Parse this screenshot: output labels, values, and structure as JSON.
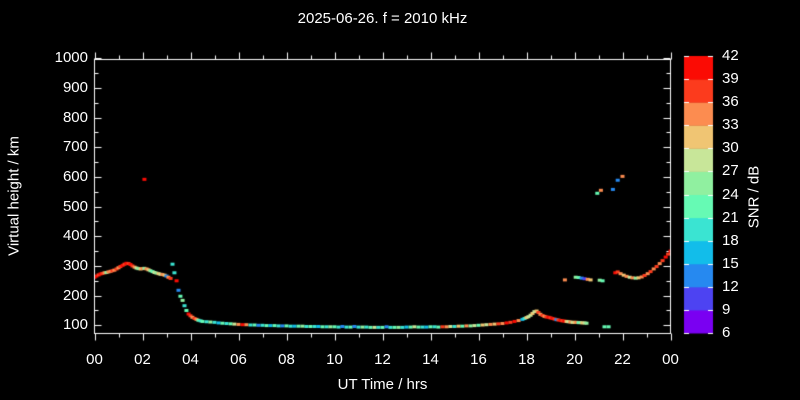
{
  "title": "2025-06-26. f = 2010 kHz",
  "chart_data": {
    "type": "scatter",
    "xlabel": "UT Time / hrs",
    "ylabel": "Virtual height / km",
    "background": "#000000",
    "frame_color": "#ffffff",
    "xlim_hours": [
      0,
      24
    ],
    "x_tick_labels": [
      "00",
      "02",
      "04",
      "06",
      "08",
      "10",
      "12",
      "14",
      "16",
      "18",
      "20",
      "22",
      "00"
    ],
    "x_minor_step_hours": 1,
    "y_tick_labels": [
      "100",
      "200",
      "300",
      "400",
      "500",
      "600",
      "700",
      "800",
      "900",
      "1000"
    ],
    "y_minor_step_km": 50,
    "ylim_km_labeled": [
      100,
      1000
    ],
    "grid": "off",
    "colorbar": {
      "label": "SNR / dB",
      "min": 6,
      "max": 42,
      "step": 3,
      "tick_values": [
        6,
        9,
        12,
        15,
        18,
        21,
        24,
        27,
        30,
        33,
        36,
        39,
        42
      ],
      "colors_bottom_to_top": [
        "#7a00f2",
        "#4d43f2",
        "#2689f0",
        "#12bdea",
        "#3ae4d2",
        "#66fab4",
        "#90f0a0",
        "#c8e699",
        "#f0c573",
        "#fc8c50",
        "#fc3b1d",
        "#fb0b04"
      ]
    },
    "points_format": [
      "ut_hours",
      "virtual_height_km",
      "snr_db"
    ],
    "points": [
      [
        0.0,
        262,
        40
      ],
      [
        0.08,
        266,
        40
      ],
      [
        0.17,
        270,
        37
      ],
      [
        0.25,
        273,
        40
      ],
      [
        0.33,
        275,
        37
      ],
      [
        0.42,
        277,
        34
      ],
      [
        0.5,
        278,
        25
      ],
      [
        0.58,
        280,
        34
      ],
      [
        0.67,
        282,
        34
      ],
      [
        0.75,
        284,
        37
      ],
      [
        0.83,
        286,
        34
      ],
      [
        0.92,
        290,
        37
      ],
      [
        1.0,
        294,
        34
      ],
      [
        1.08,
        298,
        37
      ],
      [
        1.17,
        302,
        40
      ],
      [
        1.25,
        306,
        37
      ],
      [
        1.33,
        309,
        40
      ],
      [
        1.42,
        308,
        37
      ],
      [
        1.5,
        305,
        40
      ],
      [
        1.58,
        300,
        37
      ],
      [
        1.67,
        296,
        34
      ],
      [
        1.75,
        293,
        28
      ],
      [
        1.83,
        291,
        25
      ],
      [
        1.92,
        290,
        31
      ],
      [
        2.0,
        291,
        34
      ],
      [
        2.08,
        292,
        25
      ],
      [
        2.17,
        290,
        34
      ],
      [
        2.25,
        287,
        31
      ],
      [
        2.33,
        284,
        25
      ],
      [
        2.42,
        281,
        22
      ],
      [
        2.5,
        278,
        28
      ],
      [
        2.58,
        276,
        25
      ],
      [
        2.67,
        274,
        31
      ],
      [
        2.75,
        272,
        28
      ],
      [
        2.83,
        271,
        34
      ],
      [
        2.92,
        269,
        31
      ],
      [
        3.0,
        266,
        13
      ],
      [
        3.08,
        262,
        34
      ],
      [
        3.17,
        258,
        37
      ],
      [
        3.25,
        306,
        19
      ],
      [
        3.33,
        277,
        19
      ],
      [
        3.42,
        250,
        40
      ],
      [
        3.5,
        218,
        13
      ],
      [
        3.58,
        198,
        22
      ],
      [
        3.67,
        184,
        25
      ],
      [
        3.75,
        166,
        19
      ],
      [
        3.83,
        150,
        22
      ],
      [
        3.92,
        138,
        40
      ],
      [
        4.0,
        132,
        37
      ],
      [
        4.08,
        127,
        34
      ],
      [
        4.17,
        123,
        37
      ],
      [
        4.25,
        120,
        34
      ],
      [
        4.33,
        117,
        22
      ],
      [
        4.42,
        115,
        19
      ],
      [
        4.5,
        113,
        22
      ],
      [
        4.67,
        112,
        19
      ],
      [
        4.83,
        111,
        25
      ],
      [
        5.0,
        110,
        19
      ],
      [
        5.17,
        108,
        16
      ],
      [
        5.33,
        107,
        22
      ],
      [
        5.5,
        106,
        19
      ],
      [
        5.67,
        105,
        22
      ],
      [
        5.83,
        104,
        28
      ],
      [
        6.0,
        103,
        34
      ],
      [
        6.17,
        102,
        40
      ],
      [
        6.33,
        102,
        34
      ],
      [
        6.5,
        101,
        19
      ],
      [
        6.67,
        101,
        22
      ],
      [
        6.83,
        100,
        13
      ],
      [
        7.0,
        100,
        19
      ],
      [
        7.17,
        99,
        22
      ],
      [
        7.33,
        99,
        16
      ],
      [
        7.5,
        99,
        22
      ],
      [
        7.67,
        98,
        19
      ],
      [
        7.83,
        98,
        13
      ],
      [
        8.0,
        98,
        22
      ],
      [
        8.17,
        97,
        19
      ],
      [
        8.33,
        97,
        16
      ],
      [
        8.5,
        97,
        22
      ],
      [
        8.67,
        97,
        25
      ],
      [
        8.83,
        96,
        19
      ],
      [
        9.0,
        96,
        22
      ],
      [
        9.17,
        96,
        19
      ],
      [
        9.33,
        96,
        16
      ],
      [
        9.5,
        95,
        22
      ],
      [
        9.67,
        95,
        19
      ],
      [
        9.83,
        95,
        25
      ],
      [
        10.0,
        95,
        22
      ],
      [
        10.17,
        94,
        19
      ],
      [
        10.33,
        96,
        13
      ],
      [
        10.5,
        94,
        19
      ],
      [
        10.67,
        94,
        22
      ],
      [
        10.83,
        96,
        13
      ],
      [
        11.0,
        94,
        19
      ],
      [
        11.17,
        94,
        25
      ],
      [
        11.33,
        94,
        19
      ],
      [
        11.5,
        93,
        22
      ],
      [
        11.67,
        93,
        28
      ],
      [
        11.83,
        93,
        19
      ],
      [
        12.0,
        93,
        22
      ],
      [
        12.17,
        95,
        13
      ],
      [
        12.33,
        93,
        19
      ],
      [
        12.5,
        93,
        22
      ],
      [
        12.67,
        93,
        25
      ],
      [
        12.83,
        93,
        19
      ],
      [
        13.0,
        94,
        16
      ],
      [
        13.17,
        94,
        22
      ],
      [
        13.33,
        95,
        28
      ],
      [
        13.5,
        94,
        22
      ],
      [
        13.67,
        94,
        19
      ],
      [
        13.83,
        94,
        16
      ],
      [
        14.0,
        95,
        22
      ],
      [
        14.17,
        95,
        19
      ],
      [
        14.33,
        94,
        22
      ],
      [
        14.5,
        95,
        37
      ],
      [
        14.67,
        95,
        34
      ],
      [
        14.83,
        96,
        28
      ],
      [
        15.0,
        96,
        19
      ],
      [
        15.17,
        97,
        31
      ],
      [
        15.33,
        97,
        22
      ],
      [
        15.5,
        98,
        34
      ],
      [
        15.67,
        98,
        25
      ],
      [
        15.83,
        99,
        28
      ],
      [
        16.0,
        100,
        22
      ],
      [
        16.17,
        101,
        31
      ],
      [
        16.33,
        102,
        28
      ],
      [
        16.5,
        103,
        34
      ],
      [
        16.67,
        104,
        31
      ],
      [
        16.83,
        105,
        37
      ],
      [
        17.0,
        106,
        34
      ],
      [
        17.17,
        108,
        40
      ],
      [
        17.33,
        110,
        37
      ],
      [
        17.5,
        113,
        40
      ],
      [
        17.67,
        116,
        34
      ],
      [
        17.83,
        120,
        16
      ],
      [
        17.92,
        123,
        19
      ],
      [
        18.0,
        126,
        31
      ],
      [
        18.08,
        129,
        28
      ],
      [
        18.17,
        134,
        28
      ],
      [
        18.25,
        140,
        31
      ],
      [
        18.33,
        146,
        28
      ],
      [
        18.42,
        148,
        31
      ],
      [
        18.5,
        143,
        37
      ],
      [
        18.58,
        137,
        34
      ],
      [
        18.67,
        133,
        37
      ],
      [
        18.75,
        130,
        34
      ],
      [
        18.83,
        128,
        37
      ],
      [
        18.92,
        127,
        40
      ],
      [
        19.0,
        125,
        37
      ],
      [
        19.08,
        123,
        40
      ],
      [
        19.17,
        121,
        37
      ],
      [
        19.25,
        119,
        13
      ],
      [
        19.33,
        118,
        37
      ],
      [
        19.42,
        116,
        40
      ],
      [
        19.5,
        115,
        37
      ],
      [
        19.58,
        114,
        40
      ],
      [
        19.67,
        113,
        31
      ],
      [
        19.75,
        112,
        28
      ],
      [
        19.83,
        111,
        34
      ],
      [
        19.92,
        110,
        28
      ],
      [
        20.0,
        110,
        31
      ],
      [
        20.08,
        110,
        34
      ],
      [
        20.17,
        109,
        22
      ],
      [
        20.25,
        109,
        25
      ],
      [
        20.33,
        108,
        31
      ],
      [
        20.42,
        108,
        28
      ],
      [
        20.5,
        107,
        25
      ],
      [
        21.25,
        95,
        22
      ],
      [
        21.42,
        95,
        22
      ],
      [
        19.6,
        253,
        34
      ],
      [
        20.05,
        262,
        25
      ],
      [
        20.17,
        261,
        22
      ],
      [
        20.3,
        259,
        13
      ],
      [
        20.42,
        257,
        10
      ],
      [
        20.55,
        255,
        34
      ],
      [
        20.67,
        253,
        31
      ],
      [
        21.05,
        252,
        25
      ],
      [
        21.17,
        250,
        22
      ],
      [
        21.7,
        277,
        40
      ],
      [
        21.8,
        280,
        37
      ],
      [
        21.92,
        274,
        34
      ],
      [
        22.05,
        269,
        31
      ],
      [
        22.17,
        265,
        34
      ],
      [
        22.3,
        262,
        28
      ],
      [
        22.42,
        260,
        34
      ],
      [
        22.55,
        259,
        25
      ],
      [
        22.67,
        260,
        31
      ],
      [
        22.8,
        263,
        34
      ],
      [
        22.92,
        268,
        37
      ],
      [
        23.05,
        274,
        34
      ],
      [
        23.17,
        281,
        37
      ],
      [
        23.3,
        290,
        34
      ],
      [
        23.42,
        298,
        37
      ],
      [
        23.55,
        308,
        34
      ],
      [
        23.67,
        318,
        37
      ],
      [
        23.8,
        330,
        40
      ],
      [
        23.9,
        340,
        37
      ],
      [
        24.0,
        350,
        40
      ],
      [
        2.08,
        592,
        40
      ],
      [
        20.95,
        545,
        22
      ],
      [
        21.1,
        555,
        34
      ],
      [
        21.6,
        558,
        13
      ],
      [
        21.8,
        589,
        13
      ],
      [
        22.0,
        602,
        34
      ]
    ]
  }
}
